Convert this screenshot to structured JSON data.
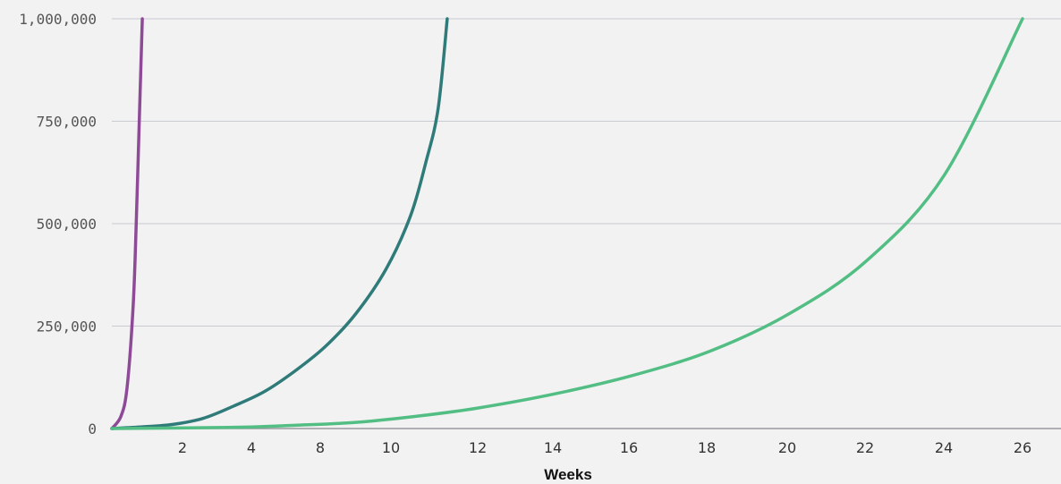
{
  "chart_data": {
    "type": "line",
    "title": "",
    "xlabel": "Weeks",
    "ylabel": "",
    "ylim": [
      0,
      1000000
    ],
    "y_ticks": [
      0,
      250000,
      500000,
      750000,
      1000000
    ],
    "y_tick_labels": [
      "0",
      "250,000",
      "500,000",
      "750,000",
      "1,000,000"
    ],
    "x_ticks": [
      {
        "label": "2"
      },
      {
        "label": "4"
      },
      {
        "label": "8"
      },
      {
        "label": "10"
      },
      {
        "label": "12"
      },
      {
        "label": "14"
      },
      {
        "label": "16"
      },
      {
        "label": "18"
      },
      {
        "label": "20"
      },
      {
        "label": "22"
      },
      {
        "label": "24"
      },
      {
        "label": "26"
      }
    ],
    "grid": "horizontal",
    "legend": "none",
    "series": [
      {
        "color": "#8e4a97",
        "points": [
          [
            0,
            0
          ],
          [
            0.3,
            30000
          ],
          [
            0.5,
            100000
          ],
          [
            0.7,
            300000
          ],
          [
            0.8,
            500000
          ],
          [
            0.9,
            750000
          ],
          [
            1.0,
            1000000
          ]
        ]
      },
      {
        "color": "#2f7b79",
        "points": [
          [
            0,
            0
          ],
          [
            1,
            4000
          ],
          [
            2,
            10000
          ],
          [
            3,
            25000
          ],
          [
            4,
            55000
          ],
          [
            5,
            90000
          ],
          [
            6,
            140000
          ],
          [
            7,
            200000
          ],
          [
            8,
            280000
          ],
          [
            9,
            390000
          ],
          [
            9.8,
            520000
          ],
          [
            10.3,
            650000
          ],
          [
            10.7,
            780000
          ],
          [
            11.0,
            1000000
          ]
        ]
      },
      {
        "color": "#52be84",
        "points": [
          [
            0,
            0
          ],
          [
            4,
            3000
          ],
          [
            6,
            8000
          ],
          [
            8,
            15000
          ],
          [
            10,
            30000
          ],
          [
            12,
            50000
          ],
          [
            14,
            85000
          ],
          [
            16,
            130000
          ],
          [
            18,
            190000
          ],
          [
            20,
            280000
          ],
          [
            22,
            410000
          ],
          [
            24,
            620000
          ],
          [
            26,
            1000000
          ]
        ]
      }
    ]
  }
}
